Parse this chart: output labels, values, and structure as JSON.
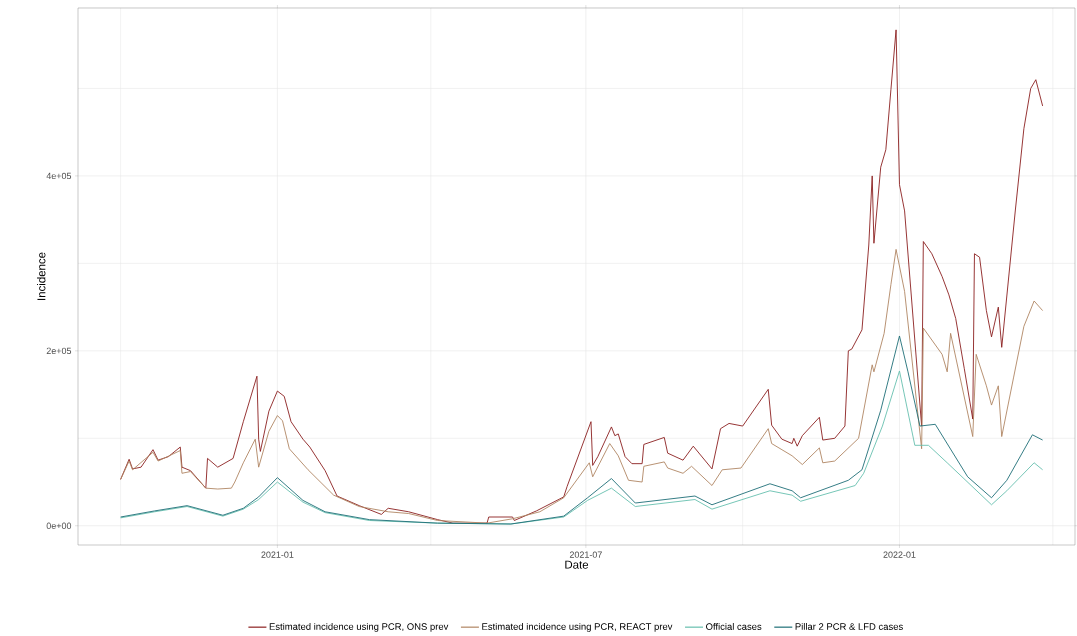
{
  "chart_data": {
    "type": "line",
    "xlabel": "Date",
    "ylabel": "Incidence",
    "xlim": [
      "2020-09-06",
      "2022-04-14"
    ],
    "ylim": [
      -22000,
      592000
    ],
    "xticks": [
      {
        "value": "2020-10",
        "label": null
      },
      {
        "value": "2021-01",
        "label": "2021-01"
      },
      {
        "value": "2021-04",
        "label": null
      },
      {
        "value": "2021-07",
        "label": "2021-07"
      },
      {
        "value": "2021-10",
        "label": null
      },
      {
        "value": "2022-01",
        "label": "2022-01"
      },
      {
        "value": "2022-04",
        "label": null
      }
    ],
    "yticks": [
      {
        "value": 0,
        "label": "0e+00"
      },
      {
        "value": 100000,
        "label": null
      },
      {
        "value": 200000,
        "label": "2e+05"
      },
      {
        "value": 300000,
        "label": null
      },
      {
        "value": 400000,
        "label": "4e+05"
      },
      {
        "value": 500000,
        "label": null
      }
    ],
    "grid": true,
    "legend": "bottom",
    "series": [
      {
        "name": "Estimated incidence using PCR, ONS prev",
        "color": "#8b1e1e",
        "x": [
          "2020-10-01",
          "2020-10-06",
          "2020-10-08",
          "2020-10-13",
          "2020-10-20",
          "2020-10-23",
          "2020-10-29",
          "2020-11-05",
          "2020-11-06",
          "2020-11-11",
          "2020-11-20",
          "2020-11-21",
          "2020-11-27",
          "2020-12-06",
          "2020-12-12",
          "2020-12-20",
          "2020-12-21",
          "2020-12-22",
          "2020-12-27",
          "2021-01-01",
          "2021-01-05",
          "2021-01-09",
          "2021-01-16",
          "2021-01-20",
          "2021-01-29",
          "2021-02-05",
          "2021-02-18",
          "2021-03-03",
          "2021-03-07",
          "2021-03-19",
          "2021-04-05",
          "2021-04-14",
          "2021-05-04",
          "2021-05-05",
          "2021-05-19",
          "2021-05-20",
          "2021-06-02",
          "2021-06-18",
          "2021-06-20",
          "2021-07-04",
          "2021-07-05",
          "2021-07-08",
          "2021-07-16",
          "2021-07-18",
          "2021-07-20",
          "2021-07-24",
          "2021-07-28",
          "2021-08-03",
          "2021-08-04",
          "2021-08-16",
          "2021-08-18",
          "2021-08-27",
          "2021-09-02",
          "2021-09-13",
          "2021-09-18",
          "2021-09-23",
          "2021-10-01",
          "2021-10-16",
          "2021-10-18",
          "2021-10-24",
          "2021-10-30",
          "2021-10-31",
          "2021-11-02",
          "2021-11-05",
          "2021-11-15",
          "2021-11-17",
          "2021-11-24",
          "2021-11-30",
          "2021-12-02",
          "2021-12-04",
          "2021-12-10",
          "2021-12-14",
          "2021-12-16",
          "2021-12-17",
          "2021-12-21",
          "2021-12-24",
          "2021-12-27",
          "2021-12-30",
          "2022-01-01",
          "2022-01-04",
          "2022-01-14",
          "2022-01-15",
          "2022-01-20",
          "2022-01-26",
          "2022-01-30",
          "2022-02-03",
          "2022-02-08",
          "2022-02-13",
          "2022-02-14",
          "2022-02-17",
          "2022-02-21",
          "2022-02-24",
          "2022-02-28",
          "2022-03-02",
          "2022-03-10",
          "2022-03-15",
          "2022-03-19",
          "2022-03-22",
          "2022-03-26"
        ],
        "values": [
          53000,
          76000,
          65000,
          67000,
          87000,
          75000,
          79000,
          90000,
          67000,
          63000,
          43000,
          77000,
          67000,
          77000,
          119000,
          171000,
          99000,
          85000,
          131000,
          154000,
          148000,
          119000,
          99000,
          90000,
          63000,
          34000,
          23000,
          13000,
          20000,
          16000,
          7000,
          3000,
          3000,
          10000,
          10000,
          6000,
          17000,
          33000,
          45000,
          119000,
          69000,
          79000,
          113000,
          103000,
          105000,
          79000,
          71000,
          71000,
          93000,
          101000,
          83000,
          75000,
          91000,
          65000,
          111000,
          117000,
          114000,
          156000,
          115000,
          99000,
          94000,
          100000,
          91000,
          103000,
          124000,
          98000,
          100000,
          114000,
          200000,
          202000,
          224000,
          321000,
          400000,
          323000,
          410000,
          430000,
          499000,
          567000,
          390000,
          360000,
          114000,
          325000,
          311000,
          285000,
          264000,
          237000,
          180000,
          122000,
          311000,
          307000,
          246000,
          216000,
          250000,
          204000,
          361000,
          454000,
          500000,
          510000,
          480000
        ]
      },
      {
        "name": "Estimated incidence using PCR, REACT prev",
        "color": "#b08562",
        "x": [
          "2020-10-01",
          "2020-10-06",
          "2020-10-08",
          "2020-10-20",
          "2020-10-23",
          "2020-11-05",
          "2020-11-06",
          "2020-11-11",
          "2020-11-20",
          "2020-11-27",
          "2020-12-05",
          "2020-12-07",
          "2020-12-12",
          "2020-12-19",
          "2020-12-21",
          "2020-12-27",
          "2021-01-01",
          "2021-01-04",
          "2021-01-08",
          "2021-01-19",
          "2021-02-03",
          "2021-02-18",
          "2021-03-07",
          "2021-03-19",
          "2021-04-05",
          "2021-05-04",
          "2021-05-19",
          "2021-06-04",
          "2021-06-18",
          "2021-07-03",
          "2021-07-05",
          "2021-07-15",
          "2021-07-20",
          "2021-07-26",
          "2021-08-03",
          "2021-08-04",
          "2021-08-16",
          "2021-08-18",
          "2021-08-27",
          "2021-09-01",
          "2021-09-13",
          "2021-09-19",
          "2021-09-30",
          "2021-10-16",
          "2021-10-18",
          "2021-10-30",
          "2021-11-05",
          "2021-11-15",
          "2021-11-17",
          "2021-11-24",
          "2021-12-08",
          "2021-12-16",
          "2021-12-17",
          "2021-12-23",
          "2021-12-27",
          "2021-12-30",
          "2022-01-04",
          "2022-01-14",
          "2022-01-15",
          "2022-01-26",
          "2022-01-29",
          "2022-01-31",
          "2022-02-13",
          "2022-02-15",
          "2022-02-21",
          "2022-02-24",
          "2022-02-28",
          "2022-03-02",
          "2022-03-09",
          "2022-03-15",
          "2022-03-21",
          "2022-03-26"
        ],
        "values": [
          53000,
          74000,
          64000,
          84000,
          74000,
          86000,
          60000,
          62000,
          43000,
          42000,
          43000,
          50000,
          72000,
          99000,
          67000,
          108000,
          126000,
          120000,
          88000,
          64000,
          35000,
          22000,
          16000,
          14000,
          6000,
          3000,
          8000,
          16000,
          32000,
          72000,
          56000,
          94000,
          80000,
          52000,
          50000,
          68000,
          73000,
          66000,
          60000,
          68000,
          46000,
          64000,
          66000,
          111000,
          94000,
          80000,
          70000,
          89000,
          72000,
          74000,
          100000,
          184000,
          176000,
          220000,
          276000,
          316000,
          268000,
          88000,
          226000,
          196000,
          176000,
          220000,
          102000,
          196000,
          160000,
          138000,
          160000,
          102000,
          170000,
          228000,
          257000,
          246000
        ]
      },
      {
        "name": "Official cases",
        "color": "#66bfae",
        "x": [
          "2020-10-01",
          "2020-10-21",
          "2020-11-09",
          "2020-11-30",
          "2020-12-12",
          "2020-12-21",
          "2021-01-01",
          "2021-01-16",
          "2021-01-29",
          "2021-02-24",
          "2021-04-05",
          "2021-05-18",
          "2021-06-18",
          "2021-07-02",
          "2021-07-16",
          "2021-07-30",
          "2021-09-03",
          "2021-09-13",
          "2021-10-17",
          "2021-10-30",
          "2021-11-04",
          "2021-12-06",
          "2021-12-11",
          "2021-12-22",
          "2022-01-01",
          "2022-01-10",
          "2022-01-18",
          "2022-01-29",
          "2022-02-24",
          "2022-03-05",
          "2022-03-21",
          "2022-03-26"
        ],
        "values": [
          9000,
          16000,
          22000,
          11000,
          19000,
          30000,
          50000,
          27000,
          15000,
          6000,
          3000,
          2000,
          10000,
          29000,
          43000,
          22000,
          30000,
          19000,
          40000,
          35000,
          28000,
          46000,
          60000,
          114000,
          177000,
          92000,
          92000,
          72000,
          24000,
          40000,
          72000,
          64000
        ]
      },
      {
        "name": "Pillar 2 PCR & LFD cases",
        "color": "#1d6e76",
        "x": [
          "2020-10-01",
          "2020-10-21",
          "2020-11-09",
          "2020-11-30",
          "2020-12-12",
          "2020-12-21",
          "2021-01-01",
          "2021-01-16",
          "2021-01-29",
          "2021-02-24",
          "2021-04-05",
          "2021-05-18",
          "2021-06-18",
          "2021-07-02",
          "2021-07-16",
          "2021-07-30",
          "2021-09-03",
          "2021-09-13",
          "2021-10-17",
          "2021-10-30",
          "2021-11-04",
          "2021-12-02",
          "2021-12-10",
          "2021-12-21",
          "2022-01-01",
          "2022-01-06",
          "2022-01-13",
          "2022-01-22",
          "2022-02-10",
          "2022-02-24",
          "2022-03-05",
          "2022-03-20",
          "2022-03-26"
        ],
        "values": [
          10000,
          17000,
          23000,
          12000,
          20000,
          33000,
          55000,
          29000,
          16000,
          7000,
          3000,
          2000,
          11000,
          32000,
          54000,
          26000,
          34000,
          24000,
          48000,
          40000,
          32000,
          52000,
          64000,
          132000,
          217000,
          176000,
          114000,
          116000,
          56000,
          32000,
          52000,
          104000,
          98000
        ]
      }
    ]
  }
}
